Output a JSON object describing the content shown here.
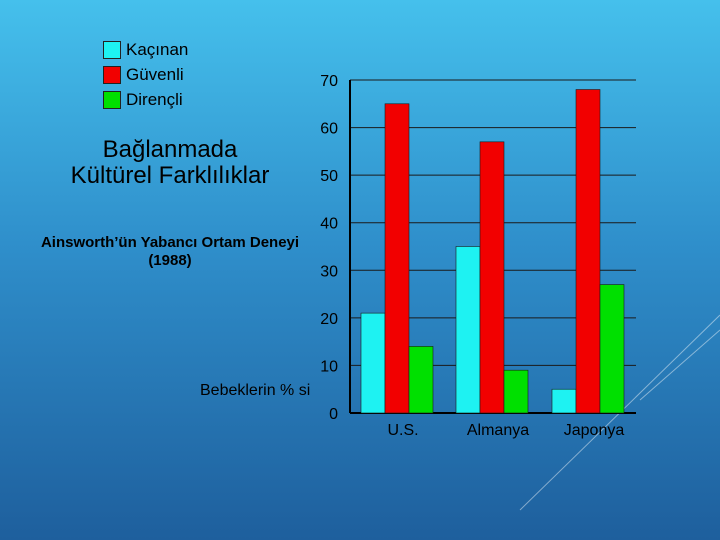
{
  "legend": {
    "items": [
      {
        "label": "Kaçınan",
        "color": "#1ef2f2"
      },
      {
        "label": "Güvenli",
        "color": "#f20000"
      },
      {
        "label": "Dirençli",
        "color": "#00e000"
      }
    ]
  },
  "title": "Bağlanmada Kültürel Farklılıklar",
  "subtitle": "Ainsworth’ün Yabancı Ortam Deneyi (1988)",
  "y_axis_label": "Bebeklerin % si",
  "chart_data": {
    "type": "bar",
    "categories": [
      "U.S.",
      "Almanya",
      "Japonya"
    ],
    "series": [
      {
        "name": "Kaçınan",
        "values": [
          21,
          35,
          5
        ],
        "color": "#1ef2f2"
      },
      {
        "name": "Güvenli",
        "values": [
          65,
          57,
          68
        ],
        "color": "#f20000"
      },
      {
        "name": "Dirençli",
        "values": [
          14,
          9,
          27
        ],
        "color": "#00e000"
      }
    ],
    "yticks": [
      "0",
      "10",
      "20",
      "30",
      "40",
      "50",
      "60",
      "70"
    ],
    "ylim": [
      0,
      70
    ],
    "grid": true,
    "ylabel": "Bebeklerin % si"
  }
}
